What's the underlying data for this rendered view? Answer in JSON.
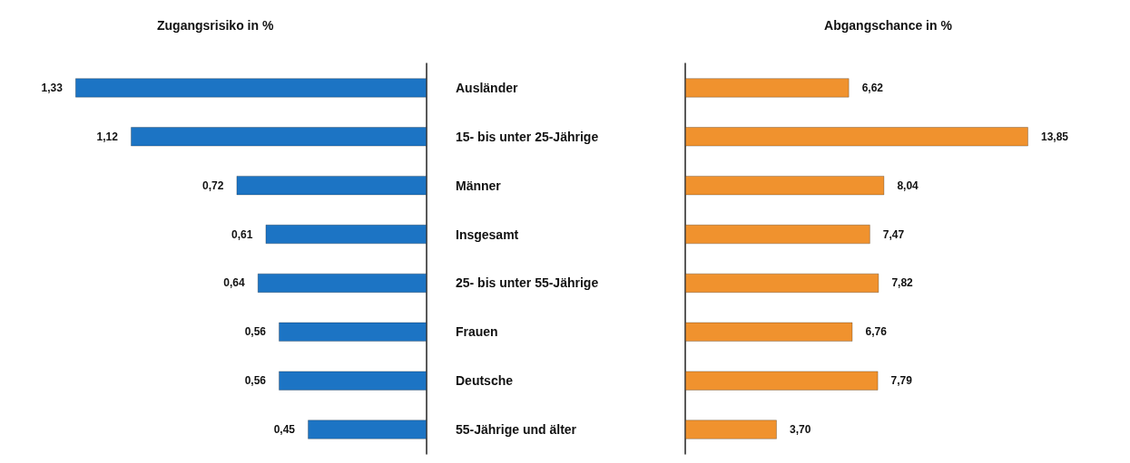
{
  "chart_data": [
    {
      "type": "bar",
      "orientation": "horizontal",
      "title": "Zugangsrisiko in %",
      "categories": [
        "Ausländer",
        "15- bis unter 25-Jährige",
        "Männer",
        "Insgesamt",
        "25- bis unter 55-Jährige",
        "Frauen",
        "Deutsche",
        "55-Jährige und älter"
      ],
      "values": [
        1.33,
        1.12,
        0.72,
        0.61,
        0.64,
        0.56,
        0.56,
        0.45
      ],
      "color": "#1c74c4",
      "value_labels": [
        "1,33",
        "1,12",
        "0,72",
        "0,61",
        "0,64",
        "0,56",
        "0,56",
        "0,45"
      ]
    },
    {
      "type": "bar",
      "orientation": "horizontal",
      "title": "Abgangschance in %",
      "categories": [
        null,
        null,
        null,
        null,
        null,
        null,
        null,
        null
      ],
      "values": [
        6.62,
        13.85,
        8.04,
        7.47,
        7.82,
        6.76,
        7.79,
        3.7
      ],
      "color": "#f0922e",
      "value_labels": [
        "6,62",
        "13,85",
        "8,04",
        "7,47",
        "7,82",
        "6,76",
        "7,79",
        "3,70"
      ]
    }
  ]
}
